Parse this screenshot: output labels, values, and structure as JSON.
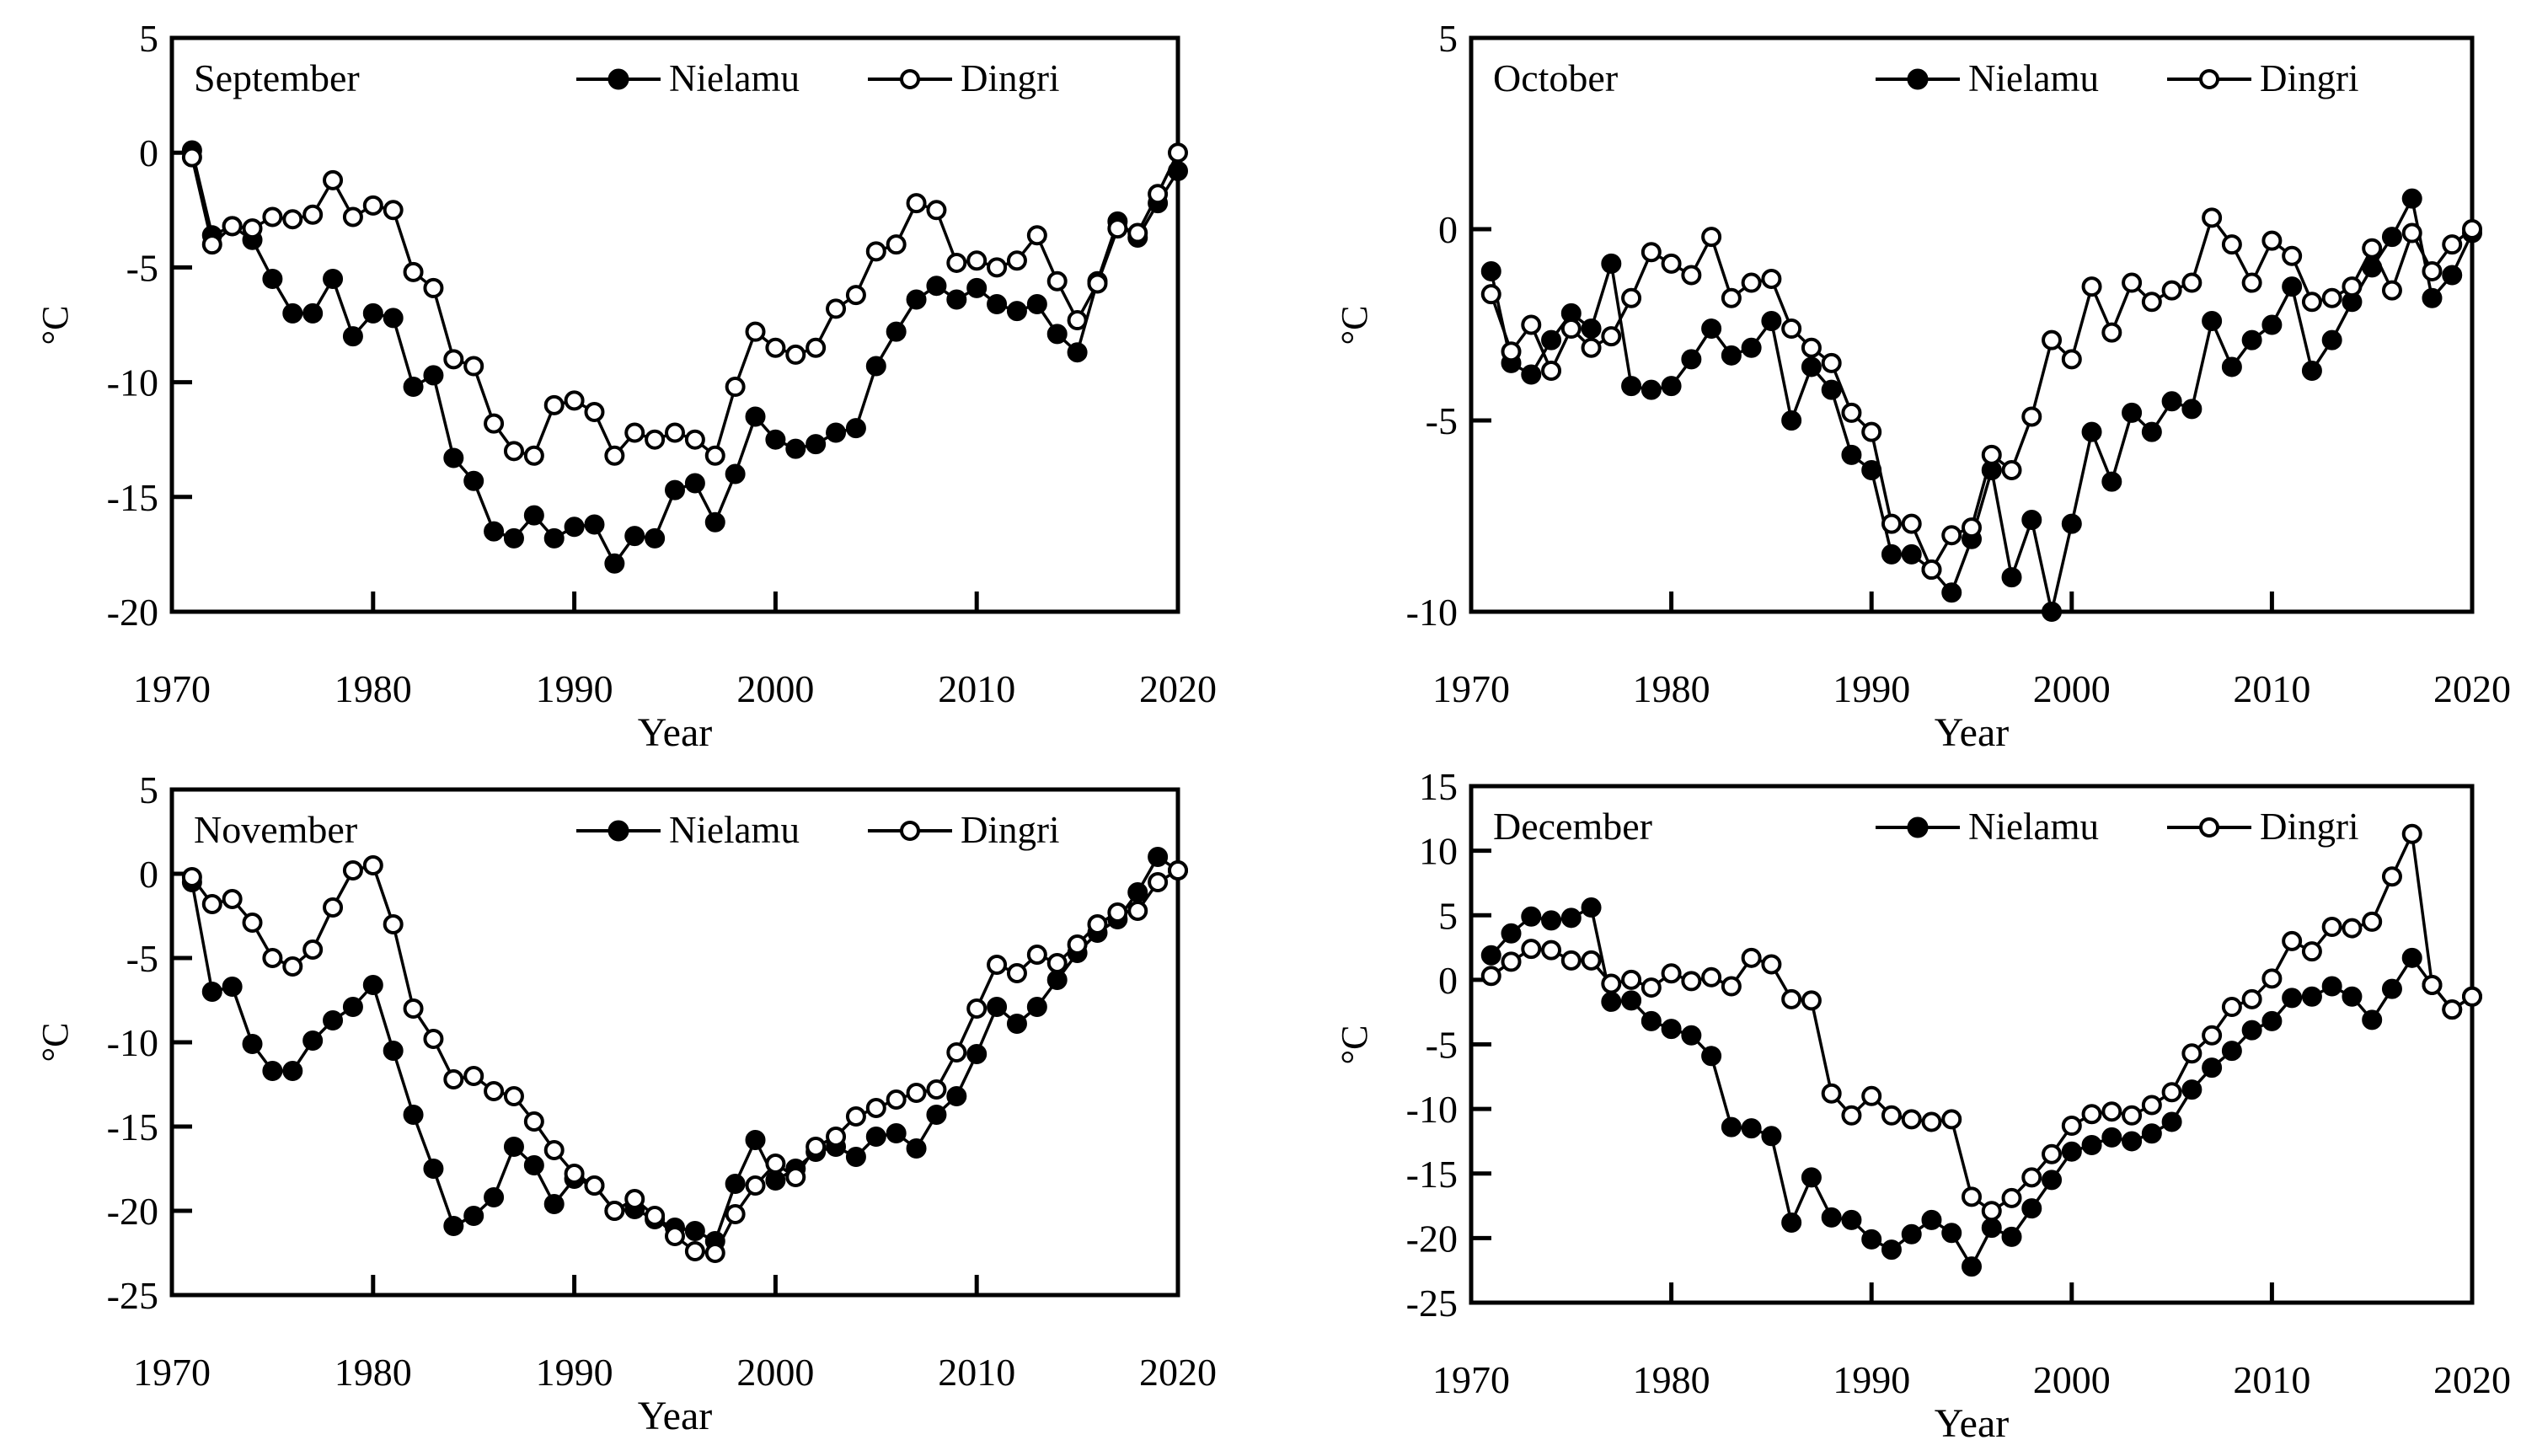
{
  "labels": {
    "x_label": "Year",
    "y_unit": "°C"
  },
  "legend": {
    "nielamu": "Nielamu",
    "dingri": "Dingri"
  },
  "colors": {
    "line": "#000000",
    "background": "#ffffff"
  },
  "years": [
    1971,
    1972,
    1973,
    1974,
    1975,
    1976,
    1977,
    1978,
    1979,
    1980,
    1981,
    1982,
    1983,
    1984,
    1985,
    1986,
    1987,
    1988,
    1989,
    1990,
    1991,
    1992,
    1993,
    1994,
    1995,
    1996,
    1997,
    1998,
    1999,
    2000,
    2001,
    2002,
    2003,
    2004,
    2005,
    2006,
    2007,
    2008,
    2009,
    2010,
    2011,
    2012,
    2013,
    2014,
    2015,
    2016,
    2017,
    2018,
    2019,
    2020
  ],
  "x_ticks": [
    1970,
    1980,
    1990,
    2000,
    2010,
    2020
  ],
  "x_range": [
    1970,
    2020
  ],
  "chart_data": [
    {
      "type": "line",
      "title": "September",
      "xlabel": "Year",
      "ylabel": "°C",
      "ylim": [
        -20,
        5
      ],
      "yticks": [
        5,
        0,
        -5,
        -10,
        -15,
        -20
      ],
      "legend_position": "top-inside",
      "grid": false,
      "series": [
        {
          "name": "Nielamu",
          "marker": "filled-circle",
          "values": [
            0.1,
            -3.6,
            -3.2,
            -3.8,
            -5.5,
            -7.0,
            -7.0,
            -5.5,
            -8.0,
            -7.0,
            -7.2,
            -10.2,
            -9.7,
            -13.3,
            -14.3,
            -16.5,
            -16.8,
            -15.8,
            -16.8,
            -16.3,
            -16.2,
            -17.9,
            -16.7,
            -16.8,
            -14.7,
            -14.4,
            -16.1,
            -14.0,
            -11.5,
            -12.5,
            -12.9,
            -12.7,
            -12.2,
            -12.0,
            -9.3,
            -7.8,
            -6.4,
            -5.8,
            -6.4,
            -5.9,
            -6.6,
            -6.9,
            -6.6,
            -7.9,
            -8.7,
            -5.6,
            -3.0,
            -3.7,
            -2.2,
            -0.8
          ]
        },
        {
          "name": "Dingri",
          "marker": "open-circle",
          "values": [
            -0.2,
            -4.0,
            -3.2,
            -3.3,
            -2.8,
            -2.9,
            -2.7,
            -1.2,
            -2.8,
            -2.3,
            -2.5,
            -5.2,
            -5.9,
            -9.0,
            -9.3,
            -11.8,
            -13.0,
            -13.2,
            -11.0,
            -10.8,
            -11.3,
            -13.2,
            -12.2,
            -12.5,
            -12.2,
            -12.5,
            -13.2,
            -10.2,
            -7.8,
            -8.5,
            -8.8,
            -8.5,
            -6.8,
            -6.2,
            -4.3,
            -4.0,
            -2.2,
            -2.5,
            -4.8,
            -4.7,
            -5.0,
            -4.7,
            -3.6,
            -5.6,
            -7.3,
            -5.7,
            -3.3,
            -3.5,
            -1.8,
            0.0
          ]
        }
      ]
    },
    {
      "type": "line",
      "title": "October",
      "xlabel": "Year",
      "ylabel": "°C",
      "ylim": [
        -10,
        5
      ],
      "yticks": [
        5,
        0,
        -5,
        -10
      ],
      "legend_position": "top-inside",
      "grid": false,
      "series": [
        {
          "name": "Nielamu",
          "marker": "filled-circle",
          "values": [
            -1.1,
            -3.5,
            -3.8,
            -2.9,
            -2.2,
            -2.6,
            -0.9,
            -4.1,
            -4.2,
            -4.1,
            -3.4,
            -2.6,
            -3.3,
            -3.1,
            -2.4,
            -5.0,
            -3.6,
            -4.2,
            -5.9,
            -6.3,
            -8.5,
            -8.5,
            -8.9,
            -9.5,
            -8.1,
            -6.3,
            -9.1,
            -7.6,
            -10.0,
            -7.7,
            -5.3,
            -6.6,
            -4.8,
            -5.3,
            -4.5,
            -4.7,
            -2.4,
            -3.6,
            -2.9,
            -2.5,
            -1.5,
            -3.7,
            -2.9,
            -1.9,
            -1.0,
            -0.2,
            0.8,
            -1.8,
            -1.2,
            -0.1
          ]
        },
        {
          "name": "Dingri",
          "marker": "open-circle",
          "values": [
            -1.7,
            -3.2,
            -2.5,
            -3.7,
            -2.6,
            -3.1,
            -2.8,
            -1.8,
            -0.6,
            -0.9,
            -1.2,
            -0.2,
            -1.8,
            -1.4,
            -1.3,
            -2.6,
            -3.1,
            -3.5,
            -4.8,
            -5.3,
            -7.7,
            -7.7,
            -8.9,
            -8.0,
            -7.8,
            -5.9,
            -6.3,
            -4.9,
            -2.9,
            -3.4,
            -1.5,
            -2.7,
            -1.4,
            -1.9,
            -1.6,
            -1.4,
            0.3,
            -0.4,
            -1.4,
            -0.3,
            -0.7,
            -1.9,
            -1.8,
            -1.5,
            -0.5,
            -1.6,
            -0.1,
            -1.1,
            -0.4,
            0.0
          ]
        }
      ]
    },
    {
      "type": "line",
      "title": "November",
      "xlabel": "Year",
      "ylabel": "°C",
      "ylim": [
        -25,
        5
      ],
      "yticks": [
        5,
        0,
        -5,
        -10,
        -15,
        -20,
        -25
      ],
      "legend_position": "top-inside",
      "grid": false,
      "series": [
        {
          "name": "Nielamu",
          "marker": "filled-circle",
          "values": [
            -0.5,
            -7.0,
            -6.7,
            -10.1,
            -11.7,
            -11.7,
            -9.9,
            -8.7,
            -7.9,
            -6.6,
            -10.5,
            -14.3,
            -17.5,
            -20.9,
            -20.3,
            -19.2,
            -16.2,
            -17.3,
            -19.6,
            -18.1,
            -18.5,
            -20.0,
            -19.9,
            -20.5,
            -21.0,
            -21.2,
            -21.8,
            -18.4,
            -15.8,
            -18.2,
            -17.5,
            -16.5,
            -16.2,
            -16.8,
            -15.6,
            -15.4,
            -16.3,
            -14.3,
            -13.2,
            -10.7,
            -7.9,
            -8.9,
            -7.9,
            -6.3,
            -4.7,
            -3.5,
            -2.7,
            -1.1,
            1.0,
            0.2
          ]
        },
        {
          "name": "Dingri",
          "marker": "open-circle",
          "values": [
            -0.2,
            -1.8,
            -1.5,
            -2.9,
            -5.0,
            -5.5,
            -4.5,
            -2.0,
            0.2,
            0.5,
            -3.0,
            -8.0,
            -9.8,
            -12.2,
            -12.0,
            -12.9,
            -13.2,
            -14.7,
            -16.4,
            -17.8,
            -18.5,
            -20.0,
            -19.3,
            -20.3,
            -21.5,
            -22.4,
            -22.5,
            -20.2,
            -18.5,
            -17.2,
            -18.0,
            -16.2,
            -15.6,
            -14.4,
            -13.9,
            -13.4,
            -13.0,
            -12.8,
            -10.6,
            -8.0,
            -5.4,
            -5.9,
            -4.8,
            -5.3,
            -4.2,
            -3.0,
            -2.3,
            -2.2,
            -0.5,
            0.2
          ]
        }
      ]
    },
    {
      "type": "line",
      "title": "December",
      "xlabel": "Year",
      "ylabel": "°C",
      "ylim": [
        -25,
        15
      ],
      "yticks": [
        15,
        10,
        5,
        0,
        -5,
        -10,
        -15,
        -20,
        -25
      ],
      "legend_position": "top-inside",
      "grid": false,
      "series": [
        {
          "name": "Nielamu",
          "marker": "filled-circle",
          "values": [
            1.9,
            3.6,
            4.9,
            4.6,
            4.8,
            5.6,
            -1.7,
            -1.6,
            -3.2,
            -3.8,
            -4.3,
            -5.9,
            -11.4,
            -11.5,
            -12.1,
            -18.8,
            -15.3,
            -18.4,
            -18.6,
            -20.1,
            -20.9,
            -19.7,
            -18.6,
            -19.6,
            -22.2,
            -19.2,
            -19.9,
            -17.7,
            -15.5,
            -13.3,
            -12.8,
            -12.2,
            -12.5,
            -11.9,
            -11.0,
            -8.5,
            -6.8,
            -5.5,
            -3.9,
            -3.2,
            -1.4,
            -1.3,
            -0.5,
            -1.3,
            -3.1,
            -0.7,
            1.7,
            -0.4,
            -2.3,
            -1.3
          ]
        },
        {
          "name": "Dingri",
          "marker": "open-circle",
          "values": [
            0.3,
            1.4,
            2.4,
            2.3,
            1.5,
            1.5,
            -0.3,
            0.0,
            -0.6,
            0.5,
            -0.1,
            0.2,
            -0.5,
            1.7,
            1.2,
            -1.5,
            -1.6,
            -8.8,
            -10.5,
            -9.0,
            -10.5,
            -10.8,
            -11.0,
            -10.8,
            -16.8,
            -17.9,
            -16.9,
            -15.3,
            -13.5,
            -11.3,
            -10.4,
            -10.2,
            -10.5,
            -9.7,
            -8.7,
            -5.7,
            -4.3,
            -2.1,
            -1.5,
            0.1,
            3.0,
            2.2,
            4.1,
            4.0,
            4.5,
            8.0,
            11.3,
            -0.4,
            -2.3,
            -1.3
          ]
        }
      ]
    }
  ]
}
